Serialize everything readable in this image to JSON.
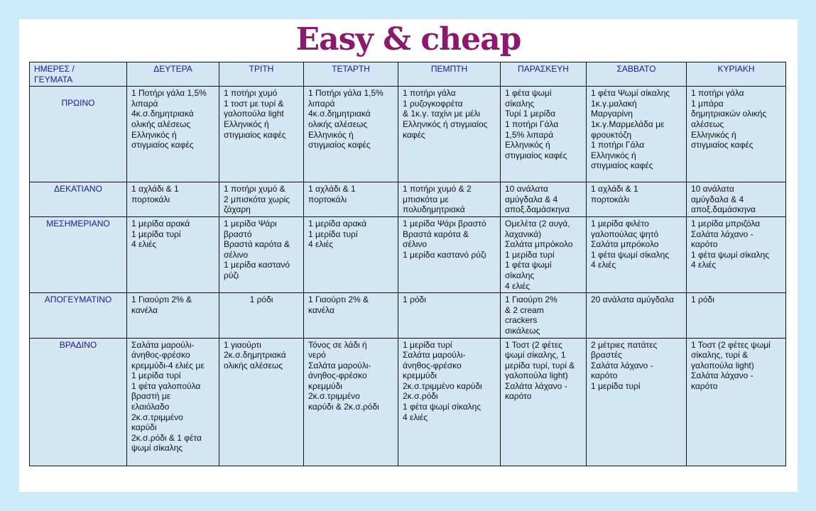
{
  "title": "Easy & cheap",
  "corner": "ΗΜΕΡΕΣ /\nΓΕΥΜΑΤΑ",
  "days": [
    "ΔΕΥΤΕΡΑ",
    "ΤΡΙΤΗ",
    "ΤΕΤΑΡΤΗ",
    "ΠΕΜΠΤΗ",
    "ΠΑΡΑΣΚΕΥΗ",
    "ΣΑΒΒΑΤΟ",
    "ΚΥΡΙΑΚΗ"
  ],
  "meals": [
    {
      "name": "ΠΡΩΙΝΟ",
      "cells": [
        "1 Ποτήρι γάλα 1,5%\nλιπαρά\n4κ.σ.δημητριακά\nολικής αλέσεως\nΕλληνικός ή\nστιγμιαίος καφές",
        "1 ποτήρι χυμό\n1 τοστ με τυρί &\nγαλοπούλα light\nΕλληνικός ή\nστιγμιαίος καφές",
        "1 Ποτήρι γάλα 1,5%\nλιπαρά\n4κ.σ.δημητριακά\nολικής αλέσεως\nΕλληνικός ή\nστιγμιαίος καφές",
        "1 ποτήρι γάλα\n1 ρυζογκοφρέτα\n& 1κ.γ. ταχίνι με μέλι\nΕλληνικός ή στιγμιαίος\nκαφές",
        "1 φέτα ψωμί\nσίκαλης\nΤυρί 1 μερίδα\n1 ποτήρι Γάλα\n1,5% λιπαρά\nΕλληνικός ή\nστιγμιαίος καφές",
        " 1 φέτα Ψωμί σίκαλης\n1κ.γ.μαλακή\nΜαργαρίνη\n1κ.γ.Μαρμελάδα με\nφρουκτόζη\n1 ποτήρι Γάλα\nΕλληνικός ή\nστιγμιαίος καφές",
        "1 ποτήρι γάλα\n1 μπάρα\nδημητριακών ολικής\nαλέσεως\nΕλληνικός ή\nστιγμιαίος καφές"
      ]
    },
    {
      "name": "ΔΕΚΑΤΙΑΝΟ",
      "cells": [
        " 1 αχλάδι & 1\nπορτοκάλι",
        "1 ποτήρι χυμό &\n2 μπισκότα χωρίς\nζάχαρη",
        " 1 αχλάδι & 1\nπορτοκάλι",
        "1 ποτήρι χυμό & 2\nμπισκότα με\nπολυδημητριακά",
        "10 ανάλατα\nαμύγδαλα & 4\nαποξ.δαμάσκηνα",
        " 1 αχλάδι & 1\nπορτοκάλι",
        "10 ανάλατα\nαμύγδαλα & 4\nαποξ.δαμάσκηνα"
      ]
    },
    {
      "name": "ΜΕΣΗΜΕΡΙΑΝΟ",
      "cells": [
        "1 μερίδα αρακά\n1 μερίδα τυρί\n4 ελιές",
        "1 μερίδα Ψάρι\nβραστό\nΒραστά καρότα &\nσέλινο\n1 μερίδα καστανό\nρύζι",
        "1 μερίδα αρακά\n1 μερίδα τυρί\n4 ελιές",
        "1 μερίδα Ψάρι βραστό\nΒραστά καρότα &\nσέλινο\n1 μερίδα καστανό ρύζι",
        "Ομελέτα (2 αυγά,\nλαχανικά)\nΣαλάτα μπρόκολο\n1 μερίδα τυρί\n1 φέτα ψωμί\nσίκαλης\n4 ελιές",
        "1 μερίδα φιλέτο\nγαλοπούλας ψητό\nΣαλάτα μπρόκολο\n1 φέτα ψωμί σίκαλης\n4 ελιές",
        "1 μερίδα μπριζόλα\nΣαλάτα λάχανο -\nκαρότο\n1 φέτα ψωμί σίκαλης\n4 ελιές"
      ]
    },
    {
      "name": "ΑΠΟΓΕΥΜΑΤΙΝΟ",
      "cells": [
        "1 Γιαούρτι 2%  &\nκανέλα",
        "1 ρόδι",
        "1 Γιαούρτι 2%  &\nκανέλα",
        "1 ρόδι",
        "1 Γιαούρτι 2%\n& 2 cream\ncrackers\nσικάλεως",
        "20 ανάλατα αμύγδαλα",
        "1 ρόδι"
      ]
    },
    {
      "name": "ΒΡΑΔΙΝΟ",
      "cells": [
        "Σαλάτα μαρούλι-\nάνηθος-φρέσκο\nκρεμμύδι-4 ελιές με\n1 μερίδα τυρί\n1 φέτα γαλοπούλα\nβραστή με\nελαιόλαδο\n2κ.σ.τριμμένο\nκαρύδι\n2κ.σ.ρόδι & 1 φέτα\nψωμί σίκαλης",
        "1 γιαούρτι\n2κ.σ.δημητριακά\nολικής αλέσεως",
        "Τόνος σε λάδι ή\nνερό\nΣαλάτα μαρούλι-\nάνηθος-φρέσκο\nκρεμμύδι\n2κ.σ.τριμμένο\nκαρύδι & 2κ.σ.ρόδι",
        "1 μερίδα τυρί\nΣαλάτα μαρούλι-\nάνηθος-φρέσκο\nκρεμμύδι\n2κ.σ.τριμμένο καρύδι\n2κ.σ.ρόδι\n1 φέτα ψωμί σίκαλης\n4 ελιές",
        "1 Τοστ (2 φέτες\nψωμί σίκαλης, 1\nμερίδα τυρί, τυρί &\nγαλοπούλα light)\nΣαλάτα λάχανο -\nκαρότο",
        "2 μέτριες πατάτες\nβραστές\nΣαλάτα λάχανο -\nκαρότο\n1 μερίδα τυρί",
        "1 Τοστ (2 φέτες ψωμί\nσίκαλης, τυρί &\nγαλοπούλα light)\nΣαλάτα λάχανο -\nκαρότο"
      ]
    }
  ]
}
